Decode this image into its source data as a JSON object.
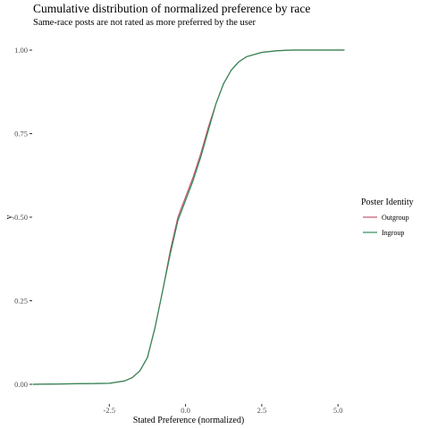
{
  "chart_data": {
    "type": "line",
    "title": "Cumulative distribution of normalized preference by race",
    "subtitle": "Same-race posts are not rated as more preferred by the user",
    "xlabel": "Stated Preference (normalized)",
    "ylabel": "y",
    "xlim": [
      -5.0,
      5.2
    ],
    "ylim": [
      0,
      1
    ],
    "x_ticks": [
      -2.5,
      0.0,
      2.5,
      5.0
    ],
    "x_tick_labels": [
      "-2.5",
      "0.0",
      "2.5",
      "5.0"
    ],
    "y_ticks": [
      0,
      0.25,
      0.5,
      0.75,
      1.0
    ],
    "y_tick_labels": [
      "0.00",
      "0.25",
      "0.50",
      "0.75",
      "1.00"
    ],
    "grid": false,
    "legend": {
      "title": "Poster Identity",
      "placement": "right"
    },
    "series": [
      {
        "name": "Outgroup",
        "color": "#c2566a",
        "x": [
          -5.0,
          -2.5,
          -2.0,
          -1.75,
          -1.5,
          -1.25,
          -1.0,
          -0.75,
          -0.5,
          -0.25,
          0.0,
          0.25,
          0.5,
          0.75,
          1.0,
          1.25,
          1.5,
          1.75,
          2.0,
          2.5,
          3.0,
          3.5,
          5.2
        ],
        "values": [
          0.0,
          0.003,
          0.01,
          0.02,
          0.04,
          0.08,
          0.17,
          0.28,
          0.4,
          0.5,
          0.56,
          0.62,
          0.69,
          0.77,
          0.84,
          0.9,
          0.94,
          0.965,
          0.98,
          0.993,
          0.998,
          1.0,
          1.0
        ]
      },
      {
        "name": "Ingroup",
        "color": "#2e8b57",
        "x": [
          -5.0,
          -2.5,
          -2.0,
          -1.75,
          -1.5,
          -1.25,
          -1.0,
          -0.75,
          -0.5,
          -0.25,
          0.0,
          0.25,
          0.5,
          0.75,
          1.0,
          1.25,
          1.5,
          1.75,
          2.0,
          2.5,
          3.0,
          3.5,
          5.2
        ],
        "values": [
          0.0,
          0.003,
          0.01,
          0.02,
          0.04,
          0.08,
          0.17,
          0.28,
          0.39,
          0.49,
          0.55,
          0.61,
          0.68,
          0.76,
          0.84,
          0.9,
          0.94,
          0.965,
          0.98,
          0.993,
          0.998,
          1.0,
          1.0
        ]
      }
    ]
  }
}
